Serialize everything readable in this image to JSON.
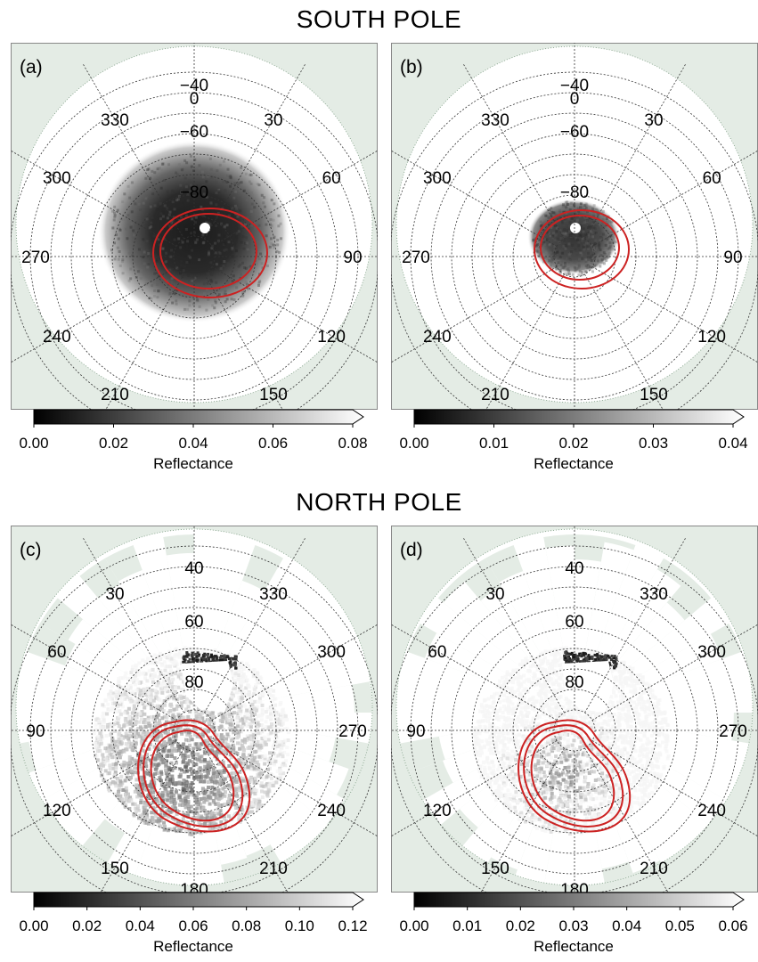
{
  "titles": {
    "south": "SOUTH POLE",
    "north": "NORTH POLE"
  },
  "chart_data": [
    {
      "type": "heatmap",
      "panel_label": "(a)",
      "hemisphere": "south",
      "projection": "polar",
      "lon_labels": [
        {
          "lon": 0,
          "text": "0"
        },
        {
          "lon": 30,
          "text": "30"
        },
        {
          "lon": 60,
          "text": "60"
        },
        {
          "lon": 90,
          "text": "90"
        },
        {
          "lon": 120,
          "text": "120"
        },
        {
          "lon": 150,
          "text": "150"
        },
        {
          "lon": 210,
          "text": "210"
        },
        {
          "lon": 240,
          "text": "240"
        },
        {
          "lon": 270,
          "text": "270"
        },
        {
          "lon": 300,
          "text": "300"
        },
        {
          "lon": 330,
          "text": "330"
        }
      ],
      "lat_labels": [
        "−40",
        "−60",
        "−80"
      ],
      "lat_circles": [
        -90,
        -80,
        -70,
        -60,
        -50,
        -40,
        -30,
        -20,
        -10,
        0
      ],
      "colorbar": {
        "label": "Reflectance",
        "min": 0.0,
        "max": 0.08,
        "ticks": [
          "0.00",
          "0.02",
          "0.04",
          "0.06",
          "0.08"
        ],
        "extend": "max",
        "colormap": "grayscale"
      },
      "contours": "red ovals around pole"
    },
    {
      "type": "heatmap",
      "panel_label": "(b)",
      "hemisphere": "south",
      "projection": "polar",
      "lon_labels": [
        {
          "lon": 0,
          "text": "0"
        },
        {
          "lon": 30,
          "text": "30"
        },
        {
          "lon": 60,
          "text": "60"
        },
        {
          "lon": 90,
          "text": "90"
        },
        {
          "lon": 120,
          "text": "120"
        },
        {
          "lon": 150,
          "text": "150"
        },
        {
          "lon": 210,
          "text": "210"
        },
        {
          "lon": 240,
          "text": "240"
        },
        {
          "lon": 270,
          "text": "270"
        },
        {
          "lon": 300,
          "text": "300"
        },
        {
          "lon": 330,
          "text": "330"
        }
      ],
      "lat_labels": [
        "−40",
        "−60",
        "−80"
      ],
      "lat_circles": [
        -90,
        -80,
        -70,
        -60,
        -50,
        -40,
        -30,
        -20,
        -10,
        0
      ],
      "colorbar": {
        "label": "Reflectance",
        "min": 0.0,
        "max": 0.04,
        "ticks": [
          "0.00",
          "0.01",
          "0.02",
          "0.03",
          "0.04"
        ],
        "extend": "max",
        "colormap": "grayscale"
      },
      "contours": "red ovals around pole"
    },
    {
      "type": "heatmap",
      "panel_label": "(c)",
      "hemisphere": "north",
      "projection": "polar",
      "lon_labels": [
        {
          "lon": 180,
          "text": "180"
        },
        {
          "lon": 150,
          "text": "150"
        },
        {
          "lon": 120,
          "text": "120"
        },
        {
          "lon": 90,
          "text": "90"
        },
        {
          "lon": 60,
          "text": "60"
        },
        {
          "lon": 30,
          "text": "30"
        },
        {
          "lon": 330,
          "text": "330"
        },
        {
          "lon": 300,
          "text": "300"
        },
        {
          "lon": 270,
          "text": "270"
        },
        {
          "lon": 240,
          "text": "240"
        },
        {
          "lon": 210,
          "text": "210"
        }
      ],
      "lat_labels": [
        "40",
        "60",
        "80"
      ],
      "lat_circles": [
        90,
        80,
        70,
        60,
        50,
        40,
        30,
        20,
        10,
        0
      ],
      "colorbar": {
        "label": "Reflectance",
        "min": 0.0,
        "max": 0.12,
        "ticks": [
          "0.00",
          "0.02",
          "0.04",
          "0.06",
          "0.08",
          "0.10",
          "0.12"
        ],
        "extend": "max",
        "colormap": "grayscale"
      },
      "contours": "red kidney-shaped ovals"
    },
    {
      "type": "heatmap",
      "panel_label": "(d)",
      "hemisphere": "north",
      "projection": "polar",
      "lon_labels": [
        {
          "lon": 180,
          "text": "180"
        },
        {
          "lon": 150,
          "text": "150"
        },
        {
          "lon": 120,
          "text": "120"
        },
        {
          "lon": 90,
          "text": "90"
        },
        {
          "lon": 60,
          "text": "60"
        },
        {
          "lon": 30,
          "text": "30"
        },
        {
          "lon": 330,
          "text": "330"
        },
        {
          "lon": 300,
          "text": "300"
        },
        {
          "lon": 270,
          "text": "270"
        },
        {
          "lon": 240,
          "text": "240"
        },
        {
          "lon": 210,
          "text": "210"
        }
      ],
      "lat_labels": [
        "40",
        "60",
        "80"
      ],
      "lat_circles": [
        90,
        80,
        70,
        60,
        50,
        40,
        30,
        20,
        10,
        0
      ],
      "colorbar": {
        "label": "Reflectance",
        "min": 0.0,
        "max": 0.06,
        "ticks": [
          "0.00",
          "0.01",
          "0.02",
          "0.03",
          "0.04",
          "0.05",
          "0.06"
        ],
        "extend": "max",
        "colormap": "grayscale"
      },
      "contours": "red kidney-shaped ovals"
    }
  ],
  "colors": {
    "background": "#e4ece5",
    "contour": "#cc2222",
    "grid": "#333333"
  }
}
